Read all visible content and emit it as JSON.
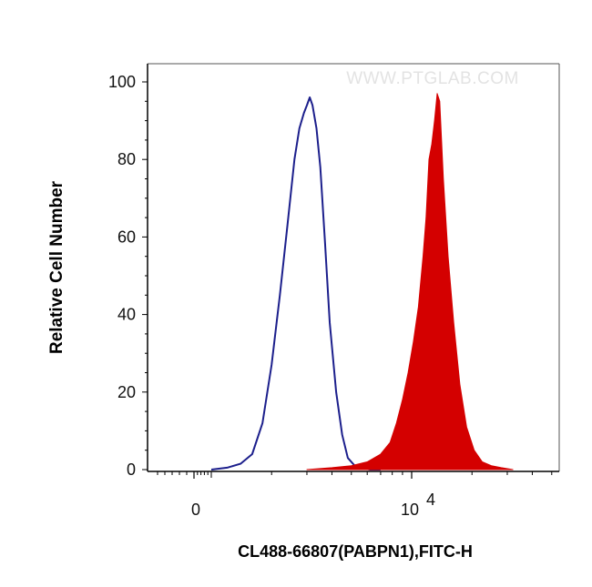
{
  "watermark": "WWW.PTGLAB.COM",
  "chart_data": {
    "type": "area",
    "xlabel": "CL488-66807(PABPN1),FITC-H",
    "ylabel": "Relative Cell Number",
    "x_scale": "biexponential",
    "xlim": [
      -1000,
      100000
    ],
    "ylim": [
      0,
      100
    ],
    "yticks": [
      0,
      20,
      40,
      60,
      80,
      100
    ],
    "xticks": [
      {
        "value": 0,
        "label": "0"
      },
      {
        "value": 10000,
        "label": "10",
        "exponent": "4"
      }
    ],
    "grid": false,
    "legend": "none",
    "series": [
      {
        "fill": false,
        "color": "#1c1f8c",
        "x": [
          1000,
          1200,
          1400,
          1600,
          1800,
          2000,
          2200,
          2400,
          2600,
          2750,
          2900,
          3000,
          3100,
          3200,
          3350,
          3500,
          3700,
          3900,
          4200,
          4500,
          4800,
          5200,
          5600,
          6200,
          7000
        ],
        "y": [
          0,
          0.5,
          1.5,
          4,
          12,
          27,
          45,
          63,
          80,
          88,
          92,
          94,
          96,
          94,
          88,
          78,
          58,
          38,
          20,
          9,
          3,
          1,
          0.5,
          0,
          0
        ]
      },
      {
        "fill": true,
        "color": "#d40000",
        "x": [
          3000,
          4000,
          5000,
          6000,
          7000,
          7800,
          8400,
          9000,
          9600,
          10200,
          10800,
          11400,
          11800,
          12200,
          12600,
          13000,
          13400,
          13800,
          14400,
          15200,
          16200,
          17400,
          18800,
          20500,
          22500,
          25000,
          28000,
          32000
        ],
        "y": [
          0,
          0.5,
          1,
          2,
          4,
          7,
          12,
          18,
          25,
          33,
          42,
          55,
          65,
          80,
          84,
          90,
          97,
          95,
          75,
          55,
          38,
          22,
          11,
          5,
          2,
          1,
          0.5,
          0
        ]
      }
    ]
  }
}
